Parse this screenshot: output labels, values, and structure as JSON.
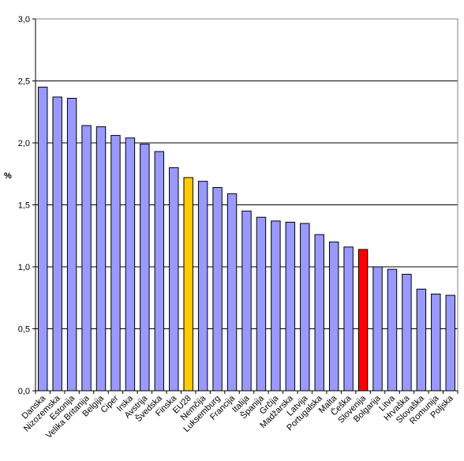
{
  "chart_data": {
    "type": "bar",
    "ylabel": "%",
    "xlabel": "",
    "title": "",
    "ylim": [
      0,
      3.0
    ],
    "yticks": [
      0.0,
      0.5,
      1.0,
      1.5,
      2.0,
      2.5,
      3.0
    ],
    "ytick_labels": [
      "0,0",
      "0,5",
      "1,0",
      "1,5",
      "2,0",
      "2,5",
      "3,0"
    ],
    "grid": "horizontal",
    "categories": [
      "Danska",
      "Nizozemska",
      "Estonija",
      "Velika Britanija",
      "Belgija",
      "Ciper",
      "Irska",
      "Avstrija",
      "Švedska",
      "Finska",
      "EU28",
      "Nemčija",
      "Luksemburg",
      "Francija",
      "Italija",
      "Španija",
      "Grčija",
      "Madžarska",
      "Latvija",
      "Portugalska",
      "Malta",
      "Češka",
      "Slovenija",
      "Bolgarija",
      "Litva",
      "Hrvaška",
      "Slovaška",
      "Romunija",
      "Poljska"
    ],
    "values": [
      2.45,
      2.37,
      2.36,
      2.14,
      2.13,
      2.06,
      2.04,
      1.99,
      1.93,
      1.8,
      1.72,
      1.69,
      1.64,
      1.59,
      1.45,
      1.4,
      1.37,
      1.36,
      1.35,
      1.26,
      1.2,
      1.16,
      1.14,
      1.0,
      0.98,
      0.94,
      0.82,
      0.78,
      0.77
    ],
    "colors": {
      "default": "#9999ff",
      "EU28": "#ffcc00",
      "Slovenija": "#ff0000",
      "grid": "#000000",
      "bar_outline": "#000000"
    }
  }
}
